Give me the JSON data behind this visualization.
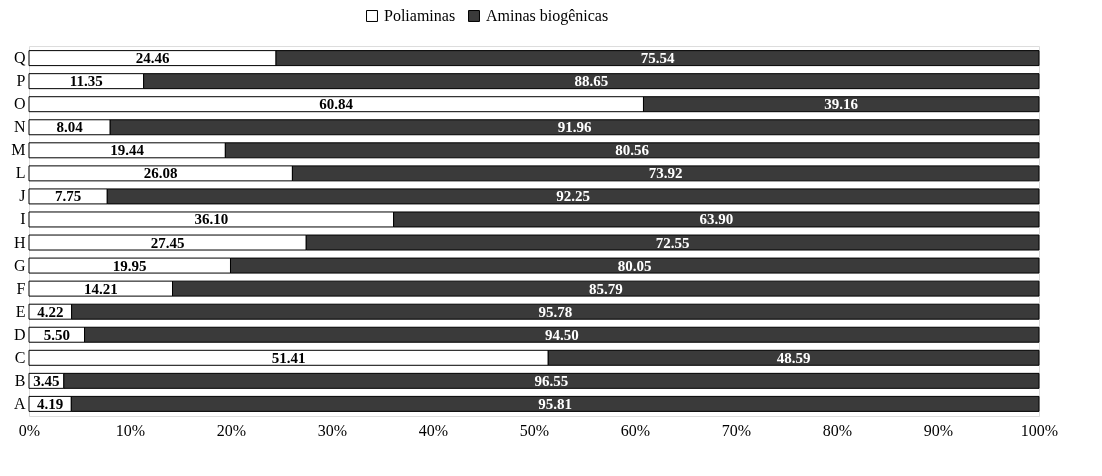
{
  "chart_data": {
    "type": "bar",
    "orientation": "horizontal",
    "stacked": true,
    "legend": "top",
    "grid": false,
    "categories": [
      "Q",
      "P",
      "O",
      "N",
      "M",
      "L",
      "J",
      "I",
      "H",
      "G",
      "F",
      "E",
      "D",
      "C",
      "B",
      "A"
    ],
    "series": [
      {
        "name": "Poliaminas",
        "color": "#ffffff",
        "values": [
          24.46,
          11.35,
          60.84,
          8.04,
          19.44,
          26.08,
          7.75,
          36.1,
          27.45,
          19.95,
          14.21,
          4.22,
          5.5,
          51.41,
          3.45,
          4.19
        ],
        "value_labels": [
          "24.46",
          "11.35",
          "60.84",
          "8.04",
          "19.44",
          "26.08",
          "7.75",
          "36.10",
          "27.45",
          "19.95",
          "14.21",
          "4.22",
          "5.50",
          "51.41",
          "3.45",
          "4.19"
        ]
      },
      {
        "name": "Aminas biogênicas",
        "color": "#3a3a3a",
        "values": [
          75.54,
          88.65,
          39.16,
          91.96,
          80.56,
          73.92,
          92.25,
          63.9,
          72.55,
          80.05,
          85.79,
          95.78,
          94.5,
          48.59,
          96.55,
          95.81
        ],
        "value_labels": [
          "75.54",
          "88.65",
          "39.16",
          "91.96",
          "80.56",
          "73.92",
          "92.25",
          "63.90",
          "72.55",
          "80.05",
          "85.79",
          "95.78",
          "94.50",
          "48.59",
          "96.55",
          "95.81"
        ]
      }
    ],
    "xlim": [
      0,
      100
    ],
    "xticks": [
      {
        "value": 0,
        "label": "0%"
      },
      {
        "value": 10,
        "label": "10%"
      },
      {
        "value": 20,
        "label": "20%"
      },
      {
        "value": 30,
        "label": "30%"
      },
      {
        "value": 40,
        "label": "40%"
      },
      {
        "value": 50,
        "label": "50%"
      },
      {
        "value": 60,
        "label": "60%"
      },
      {
        "value": 70,
        "label": "70%"
      },
      {
        "value": 80,
        "label": "80%"
      },
      {
        "value": 90,
        "label": "90%"
      },
      {
        "value": 100,
        "label": "100%"
      }
    ]
  }
}
